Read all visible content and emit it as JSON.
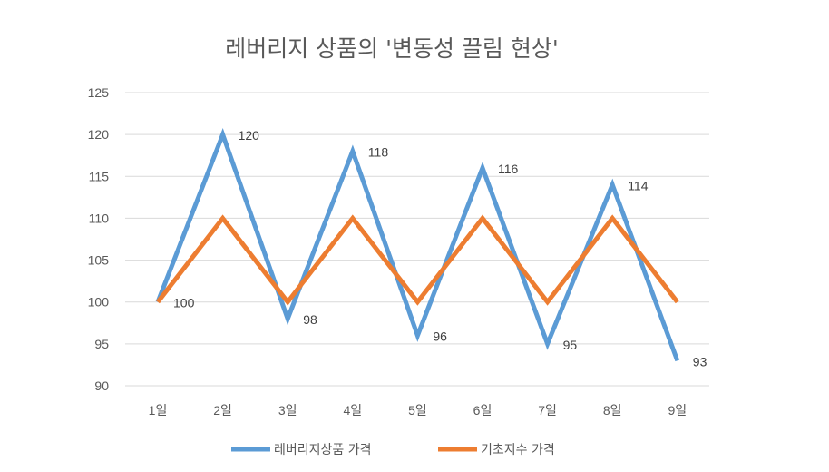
{
  "chart_data": {
    "type": "line",
    "title": "레버리지 상품의 '변동성 끌림 현상'",
    "categories": [
      "1일",
      "2일",
      "3일",
      "4일",
      "5일",
      "6일",
      "7일",
      "8일",
      "9일"
    ],
    "ylim": [
      90,
      125
    ],
    "yticks": [
      90,
      95,
      100,
      105,
      110,
      115,
      120,
      125
    ],
    "grid": true,
    "legend_position": "bottom",
    "xlabel": "",
    "ylabel": "",
    "series": [
      {
        "name": "레버리지상품 가격",
        "color": "#5b9bd5",
        "values": [
          100,
          120,
          98,
          118,
          96,
          116,
          95,
          114,
          93
        ],
        "data_labels": [
          "100",
          "120",
          "98",
          "118",
          "96",
          "116",
          "95",
          "114",
          "93"
        ]
      },
      {
        "name": "기초지수 가격",
        "color": "#ed7d31",
        "values": [
          100,
          110,
          100,
          110,
          100,
          110,
          100,
          110,
          100
        ]
      }
    ]
  }
}
